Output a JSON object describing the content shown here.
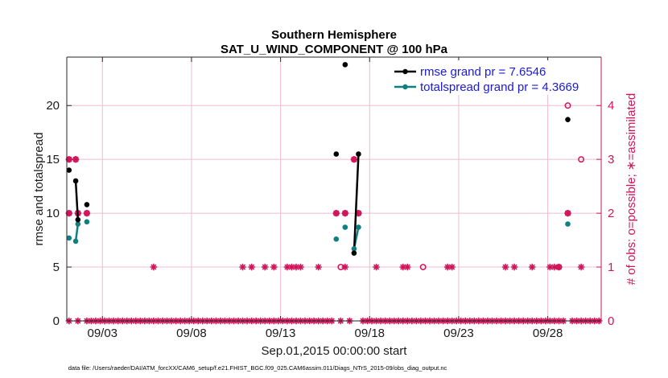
{
  "chart_data": {
    "type": "scatter",
    "title": "Southern Hemisphere",
    "subtitle": "SAT_U_WIND_COMPONENT @ 100 hPa",
    "xlabel": "Sep.01,2015 00:00:00 start",
    "ylabel": "rmse and totalspread",
    "y2label": "# of obs: o=possible; ∗=assimilated",
    "xlim": [
      1,
      31
    ],
    "ylim": [
      0,
      24.5
    ],
    "y2lim": [
      0,
      4.9
    ],
    "x_ticks": [
      3,
      8,
      13,
      18,
      23,
      28
    ],
    "x_tick_labels": [
      "09/03",
      "09/08",
      "09/13",
      "09/18",
      "09/23",
      "09/28"
    ],
    "y_ticks": [
      0,
      5,
      10,
      15,
      20
    ],
    "y_tick_labels": [
      "0",
      "5",
      "10",
      "15",
      "20"
    ],
    "y2_ticks": [
      0,
      1,
      2,
      3,
      4
    ],
    "y2_tick_labels": [
      "0",
      "1",
      "2",
      "3",
      "4"
    ],
    "footnote": "data file: /Users/raeder/DAI/ATM_forcXX/CAM6_setup/f.e21.FHIST_BGC.f09_025.CAM6assim.011/Diags_NTrS_2015-09/obs_diag_output.nc",
    "legend_position": "top-right",
    "series": [
      {
        "name": "rmse",
        "legend": "rmse grand pr = 7.6546",
        "color": "#000000",
        "points": [
          [
            1.125,
            14.0
          ],
          [
            1.5,
            13.0
          ],
          [
            1.625,
            9.4
          ],
          [
            2.125,
            10.8
          ],
          [
            16.125,
            15.5
          ],
          [
            16.625,
            23.8
          ],
          [
            17.125,
            6.3
          ],
          [
            17.375,
            15.5
          ],
          [
            29.125,
            18.7
          ]
        ],
        "segments": [
          [
            [
              1.5,
              13.0
            ],
            [
              1.625,
              9.4
            ]
          ],
          [
            [
              17.125,
              6.3
            ],
            [
              17.375,
              15.5
            ]
          ]
        ]
      },
      {
        "name": "totalspread",
        "legend": "totalspread grand pr = 4.3669",
        "color": "#0f8080",
        "points": [
          [
            1.125,
            7.7
          ],
          [
            1.5,
            7.4
          ],
          [
            1.625,
            9.0
          ],
          [
            2.125,
            9.2
          ],
          [
            16.125,
            7.6
          ],
          [
            16.625,
            8.7
          ],
          [
            17.125,
            6.7
          ],
          [
            17.375,
            8.7
          ],
          [
            29.125,
            9.0
          ]
        ],
        "segments": [
          [
            [
              1.5,
              7.4
            ],
            [
              1.625,
              9.0
            ]
          ],
          [
            [
              17.125,
              6.7
            ],
            [
              17.375,
              8.7
            ]
          ]
        ]
      },
      {
        "name": "obs possible",
        "marker": "o",
        "color": "#d1145a",
        "points": [
          [
            1.125,
            3
          ],
          [
            1.5,
            3
          ],
          [
            1.625,
            2
          ],
          [
            2.125,
            2
          ],
          [
            16.125,
            2
          ],
          [
            16.625,
            2
          ],
          [
            17.125,
            3
          ],
          [
            17.375,
            2
          ],
          [
            29.125,
            4
          ],
          [
            29.875,
            3
          ],
          [
            16.375,
            1
          ],
          [
            21,
            1
          ],
          [
            28.625,
            1
          ],
          [
            1.125,
            2
          ],
          [
            29.125,
            2
          ]
        ]
      },
      {
        "name": "obs assimilated",
        "marker": "*",
        "color": "#d1145a",
        "one_obs_days": [
          5.875,
          10.875,
          11.375,
          12.125,
          12.625,
          13.375,
          13.625,
          13.875,
          14.125,
          15.125,
          16.625,
          18.375,
          19.875,
          20.125,
          22.375,
          22.625,
          25.625,
          26.125,
          27.125,
          28.125,
          28.375,
          28.625,
          29.875
        ],
        "two_obs_days": [
          1.125,
          1.625,
          2.125,
          16.125,
          16.625,
          17.375,
          29.125
        ],
        "three_obs_days": [
          1.125,
          1.5,
          17.125
        ],
        "zero_obs_days": [
          1.125,
          1.625,
          2.125,
          2.375,
          2.625,
          2.875,
          3.125,
          3.375,
          3.625,
          3.875,
          4.125,
          4.375,
          4.625,
          4.875,
          5.125,
          5.375,
          5.625,
          5.875,
          6.125,
          6.375,
          6.625,
          6.875,
          7.125,
          7.375,
          7.625,
          7.875,
          8.125,
          8.375,
          8.625,
          8.875,
          9.125,
          9.375,
          9.625,
          9.875,
          10.125,
          10.375,
          10.625,
          10.875,
          11.125,
          11.375,
          11.625,
          11.875,
          12.125,
          12.375,
          12.625,
          12.875,
          13.125,
          13.375,
          13.625,
          13.875,
          14.125,
          14.375,
          14.625,
          14.875,
          15.125,
          15.375,
          15.625,
          15.875,
          16.375,
          16.875,
          17.625,
          17.875,
          18.125,
          18.375,
          18.625,
          18.875,
          19.125,
          19.375,
          19.625,
          19.875,
          20.125,
          20.375,
          20.625,
          20.875,
          21.125,
          21.375,
          21.625,
          21.875,
          22.125,
          22.375,
          22.625,
          22.875,
          23.125,
          23.375,
          23.625,
          23.875,
          24.125,
          24.375,
          24.625,
          24.875,
          25.125,
          25.375,
          25.625,
          25.875,
          26.125,
          26.375,
          26.625,
          26.875,
          27.125,
          27.375,
          27.625,
          27.875,
          28.125,
          28.375,
          28.625,
          28.875,
          29.375,
          29.625,
          29.875,
          30.125,
          30.375,
          30.625,
          30.875
        ]
      }
    ]
  }
}
